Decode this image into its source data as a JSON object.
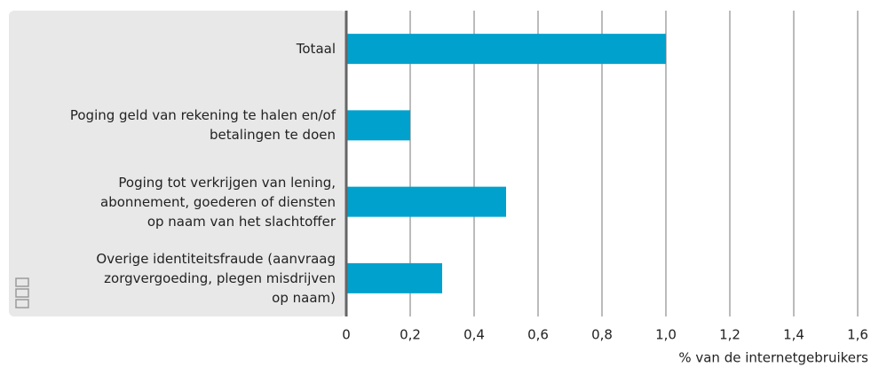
{
  "chart_data": {
    "type": "bar",
    "orientation": "horizontal",
    "categories": [
      "Totaal",
      "Poging geld van rekening te halen en/of\nbetalingen te doen",
      "Poging tot verkrijgen van lening,\nabonnement, goederen of diensten\nop naam van het slachtoffer",
      "Overige identiteitsfraude (aanvraag\nzorgvergoeding, plegen misdrijven\nop naam)"
    ],
    "values": [
      1.0,
      0.2,
      0.5,
      0.3
    ],
    "color": "#00a1cd",
    "xlabel": "% van de internetgebruikers",
    "xlim": [
      0,
      1.6
    ],
    "xticks": [
      0,
      {
        "value": 0.2,
        "label": "0,2"
      },
      {
        "value": 0.4,
        "label": "0,4"
      },
      {
        "value": 0.6,
        "label": "0,6"
      },
      {
        "value": 0.8,
        "label": "0,8"
      },
      {
        "value": 1.0,
        "label": "1,0"
      },
      {
        "value": 1.2,
        "label": "1,2"
      },
      {
        "value": 1.4,
        "label": "1,4"
      },
      {
        "value": 1.6,
        "label": "1,6"
      }
    ],
    "grid": true
  }
}
